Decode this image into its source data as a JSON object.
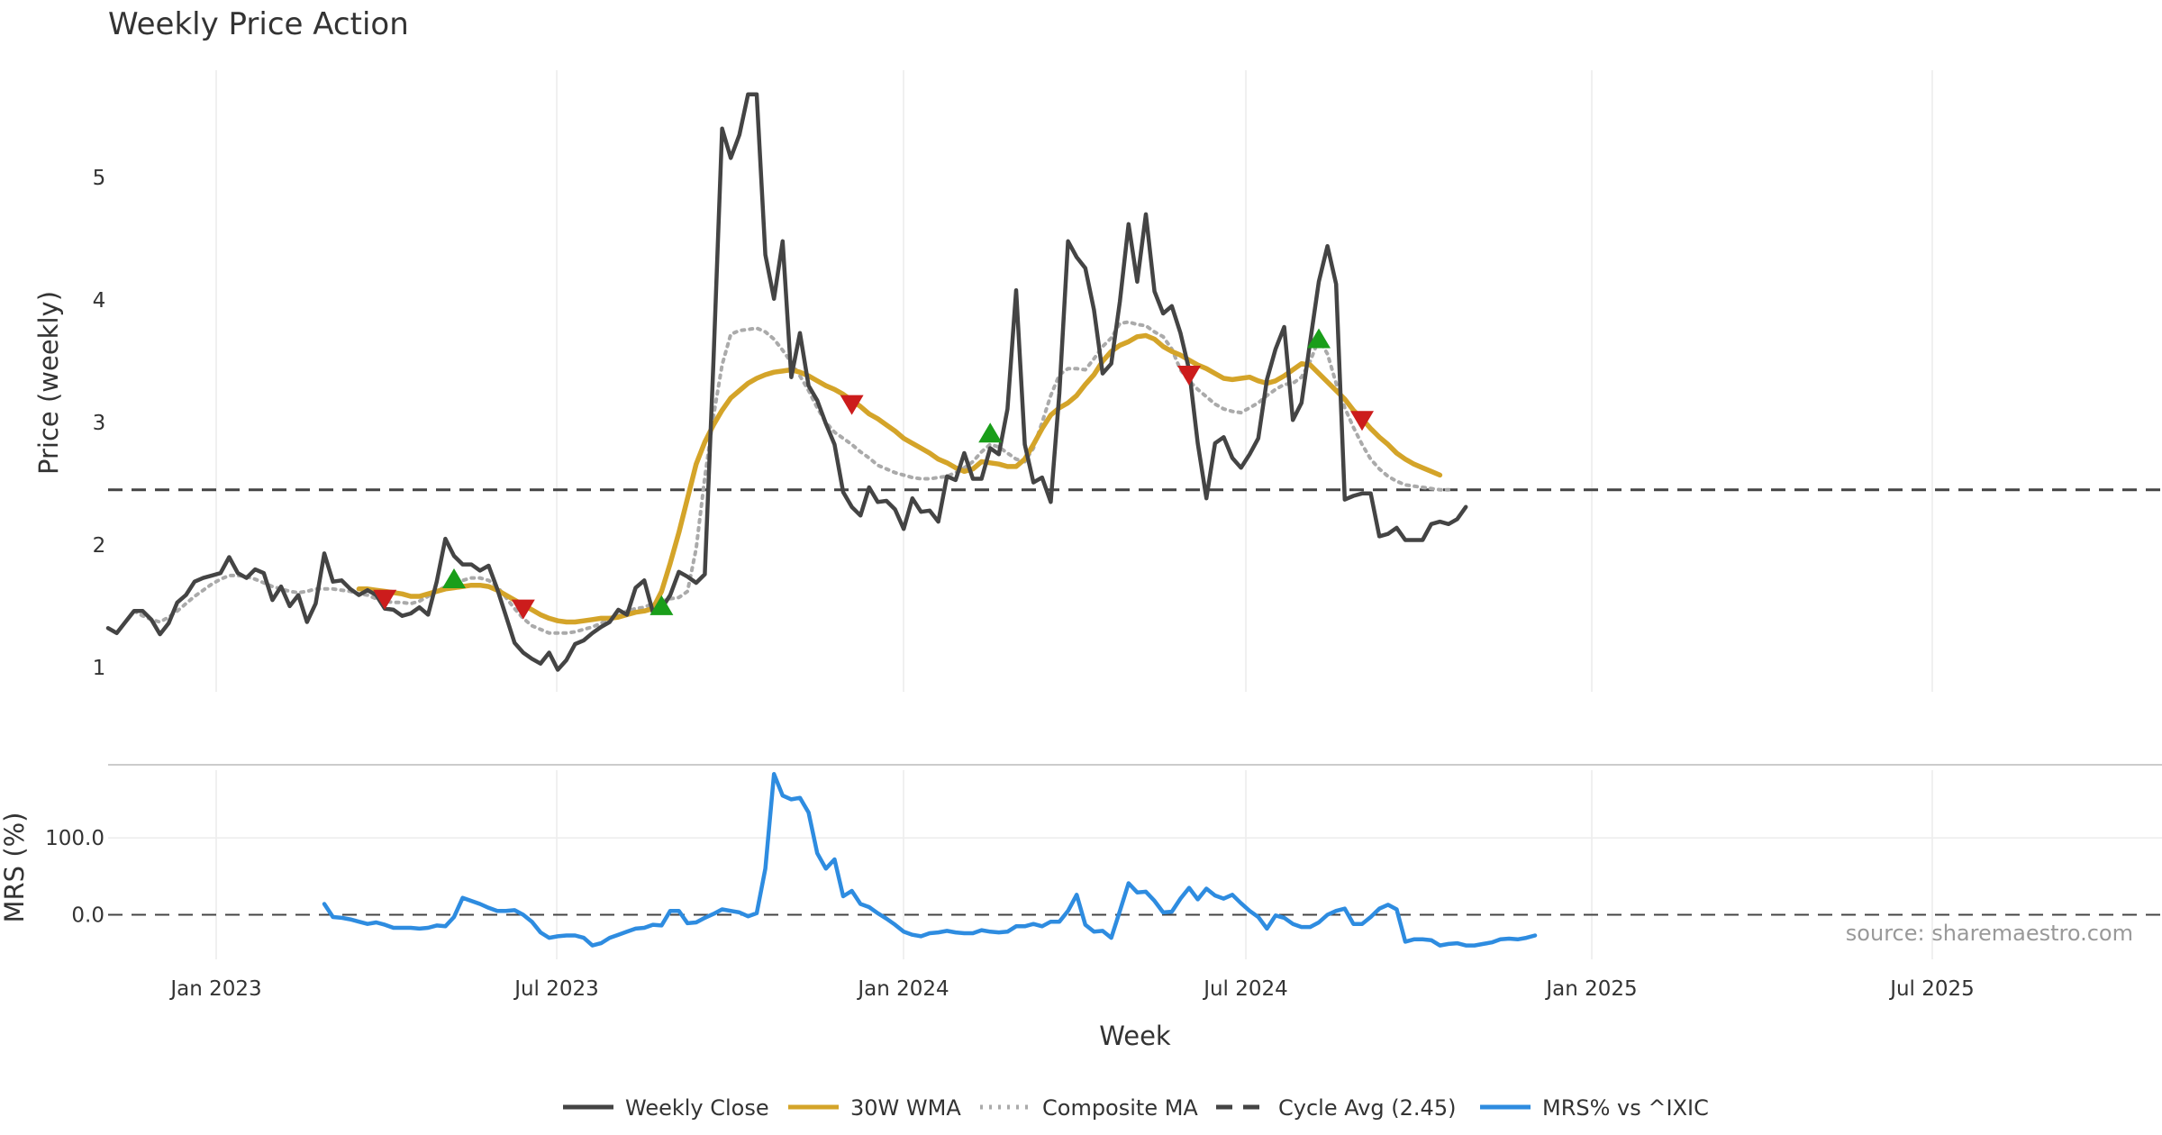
{
  "chart_data": {
    "type": "line",
    "title": "Weekly Price Action",
    "xlabel": "Week",
    "x_ticks": [
      "Jan 2023",
      "Jul 2023",
      "Jan 2024",
      "Jul 2024",
      "Jan 2025",
      "Jul 2025"
    ],
    "panels": [
      {
        "name": "price",
        "ylabel": "Price (weekly)",
        "ylim": [
          0.8,
          5.95
        ],
        "y_ticks": [
          1,
          2,
          3,
          4,
          5
        ],
        "grid": true,
        "series": [
          {
            "name": "Weekly Close",
            "color": "#444444",
            "style": "solid",
            "x_start": 0,
            "values": [
              1.32,
              1.28,
              1.37,
              1.46,
              1.46,
              1.39,
              1.27,
              1.36,
              1.53,
              1.59,
              1.7,
              1.73,
              1.75,
              1.77,
              1.9,
              1.77,
              1.73,
              1.8,
              1.77,
              1.55,
              1.66,
              1.5,
              1.59,
              1.37,
              1.52,
              1.93,
              1.7,
              1.71,
              1.64,
              1.59,
              1.63,
              1.59,
              1.48,
              1.47,
              1.42,
              1.44,
              1.49,
              1.43,
              1.7,
              2.05,
              1.91,
              1.84,
              1.84,
              1.79,
              1.83,
              1.64,
              1.42,
              1.2,
              1.12,
              1.07,
              1.03,
              1.12,
              0.98,
              1.06,
              1.19,
              1.22,
              1.28,
              1.33,
              1.37,
              1.47,
              1.43,
              1.65,
              1.71,
              1.45,
              1.48,
              1.59,
              1.78,
              1.74,
              1.69,
              1.76,
              3.5,
              5.4,
              5.16,
              5.35,
              5.68,
              5.68,
              4.37,
              4.01,
              4.48,
              3.37,
              3.73,
              3.3,
              3.18,
              2.99,
              2.82,
              2.43,
              2.31,
              2.24,
              2.47,
              2.35,
              2.36,
              2.29,
              2.13,
              2.38,
              2.27,
              2.28,
              2.19,
              2.56,
              2.53,
              2.75,
              2.54,
              2.54,
              2.79,
              2.74,
              3.11,
              4.08,
              2.82,
              2.51,
              2.55,
              2.35,
              3.24,
              4.48,
              4.35,
              4.26,
              3.92,
              3.4,
              3.48,
              3.99,
              4.62,
              4.15,
              4.7,
              4.07,
              3.89,
              3.95,
              3.73,
              3.43,
              2.83,
              2.38,
              2.83,
              2.88,
              2.71,
              2.63,
              2.74,
              2.87,
              3.35,
              3.6,
              3.78,
              3.02,
              3.16,
              3.66,
              4.15,
              4.44,
              4.13,
              2.37,
              2.4,
              2.42,
              2.42,
              2.07,
              2.09,
              2.14,
              2.04,
              2.04,
              2.04,
              2.17,
              2.19,
              2.17,
              2.21,
              2.31
            ]
          },
          {
            "name": "30W WMA",
            "color": "#D4A429",
            "style": "solid",
            "x_start": 29,
            "values": [
              1.64,
              1.64,
              1.63,
              1.62,
              1.61,
              1.6,
              1.58,
              1.58,
              1.6,
              1.62,
              1.64,
              1.65,
              1.66,
              1.67,
              1.67,
              1.66,
              1.63,
              1.59,
              1.55,
              1.51,
              1.47,
              1.43,
              1.4,
              1.38,
              1.37,
              1.37,
              1.38,
              1.39,
              1.4,
              1.4,
              1.41,
              1.43,
              1.45,
              1.46,
              1.48,
              1.62,
              1.85,
              2.1,
              2.38,
              2.66,
              2.84,
              2.98,
              3.1,
              3.2,
              3.26,
              3.32,
              3.36,
              3.39,
              3.41,
              3.42,
              3.43,
              3.41,
              3.38,
              3.34,
              3.3,
              3.27,
              3.23,
              3.18,
              3.13,
              3.07,
              3.03,
              2.98,
              2.93,
              2.87,
              2.83,
              2.79,
              2.75,
              2.7,
              2.67,
              2.63,
              2.6,
              2.62,
              2.68,
              2.67,
              2.66,
              2.64,
              2.64,
              2.7,
              2.82,
              2.95,
              3.06,
              3.12,
              3.16,
              3.22,
              3.31,
              3.39,
              3.5,
              3.58,
              3.63,
              3.66,
              3.7,
              3.71,
              3.68,
              3.62,
              3.58,
              3.55,
              3.51,
              3.47,
              3.44,
              3.4,
              3.36,
              3.35,
              3.36,
              3.37,
              3.34,
              3.32,
              3.34,
              3.38,
              3.43,
              3.48,
              3.47,
              3.4,
              3.33,
              3.26,
              3.19,
              3.1,
              3.03,
              2.95,
              2.88,
              2.82,
              2.75,
              2.7,
              2.66,
              2.63,
              2.6,
              2.57
            ]
          },
          {
            "name": "Composite MA",
            "color": "#AAAAAA",
            "style": "dotted",
            "x_start": 3,
            "values": [
              1.46,
              1.42,
              1.39,
              1.37,
              1.41,
              1.46,
              1.52,
              1.58,
              1.63,
              1.68,
              1.72,
              1.75,
              1.75,
              1.74,
              1.72,
              1.69,
              1.66,
              1.64,
              1.62,
              1.61,
              1.62,
              1.64,
              1.64,
              1.64,
              1.63,
              1.62,
              1.6,
              1.59,
              1.56,
              1.54,
              1.53,
              1.53,
              1.52,
              1.54,
              1.58,
              1.62,
              1.66,
              1.69,
              1.71,
              1.73,
              1.73,
              1.71,
              1.66,
              1.57,
              1.48,
              1.4,
              1.34,
              1.31,
              1.28,
              1.28,
              1.28,
              1.29,
              1.31,
              1.33,
              1.36,
              1.4,
              1.42,
              1.46,
              1.48,
              1.49,
              1.52,
              1.54,
              1.56,
              1.57,
              1.62,
              1.97,
              2.55,
              3.05,
              3.47,
              3.72,
              3.75,
              3.76,
              3.77,
              3.74,
              3.68,
              3.59,
              3.49,
              3.38,
              3.26,
              3.12,
              3.0,
              2.92,
              2.87,
              2.82,
              2.76,
              2.71,
              2.65,
              2.62,
              2.59,
              2.57,
              2.55,
              2.54,
              2.54,
              2.55,
              2.56,
              2.59,
              2.63,
              2.68,
              2.76,
              2.82,
              2.8,
              2.75,
              2.7,
              2.68,
              2.79,
              3.0,
              3.22,
              3.39,
              3.44,
              3.44,
              3.43,
              3.52,
              3.62,
              3.69,
              3.81,
              3.82,
              3.8,
              3.79,
              3.74,
              3.7,
              3.6,
              3.43,
              3.34,
              3.27,
              3.21,
              3.15,
              3.11,
              3.09,
              3.08,
              3.12,
              3.16,
              3.22,
              3.27,
              3.31,
              3.32,
              3.37,
              3.5,
              3.68,
              3.56,
              3.32,
              3.12,
              2.96,
              2.82,
              2.7,
              2.62,
              2.56,
              2.52,
              2.49,
              2.48,
              2.47,
              2.46,
              2.45,
              2.45
            ]
          },
          {
            "name": "Cycle Avg (2.45)",
            "color": "#444444",
            "style": "dashed",
            "value": 2.45
          }
        ],
        "buy_signals": [
          [
            40,
            1.72
          ],
          [
            64,
            1.5
          ],
          [
            102,
            2.91
          ],
          [
            140,
            3.68
          ]
        ],
        "sell_signals": [
          [
            32,
            1.56
          ],
          [
            48,
            1.48
          ],
          [
            86,
            3.15
          ],
          [
            125,
            3.39
          ],
          [
            145,
            3.02
          ]
        ]
      },
      {
        "name": "mrs",
        "ylabel": "MRS (%)",
        "ylim": [
          -58,
          188
        ],
        "y_ticks": [
          0.0,
          100.0
        ],
        "y_tick_labels": [
          "0.0",
          "100.0"
        ],
        "grid": true,
        "zero_line": true,
        "series": [
          {
            "name": "MRS% vs ^IXIC",
            "color": "#2E8CE0",
            "style": "solid",
            "x_start": 25,
            "values": [
              14,
              -3,
              -4,
              -6,
              -9,
              -12,
              -10,
              -13,
              -17,
              -17,
              -17,
              -18,
              -17,
              -14,
              -15,
              -3,
              22,
              18,
              14,
              9,
              5,
              5,
              6,
              0,
              -9,
              -23,
              -30,
              -28,
              -27,
              -27,
              -30,
              -40,
              -37,
              -30,
              -26,
              -22,
              -18,
              -17,
              -13,
              -14,
              5,
              5,
              -11,
              -10,
              -4,
              1,
              7,
              5,
              3,
              -2,
              2,
              60,
              183,
              155,
              150,
              152,
              133,
              80,
              60,
              72,
              24,
              31,
              14,
              10,
              2,
              -5,
              -13,
              -22,
              -26,
              -28,
              -24,
              -23,
              -21,
              -23,
              -24,
              -24,
              -20,
              -22,
              -23,
              -22,
              -15,
              -15,
              -12,
              -15,
              -9,
              -9,
              5,
              26,
              -13,
              -22,
              -21,
              -30,
              5,
              41,
              29,
              30,
              18,
              3,
              4,
              21,
              35,
              20,
              34,
              25,
              21,
              26,
              15,
              5,
              -3,
              -18,
              -1,
              -4,
              -12,
              -16,
              -16,
              -10,
              0,
              5,
              8,
              -12,
              -12,
              -3,
              8,
              13,
              7,
              -35,
              -32,
              -32,
              -33,
              -40,
              -38,
              -37,
              -40,
              -40,
              -38,
              -36,
              -32,
              -31,
              -32,
              -30,
              -27
            ]
          }
        ]
      }
    ],
    "legend": {
      "placement": "bottom-center",
      "entries": [
        "Weekly Close",
        "30W WMA",
        "Composite MA",
        "Cycle Avg (2.45)",
        "MRS% vs ^IXIC"
      ]
    },
    "annotation": "source: sharemaestro.com"
  }
}
